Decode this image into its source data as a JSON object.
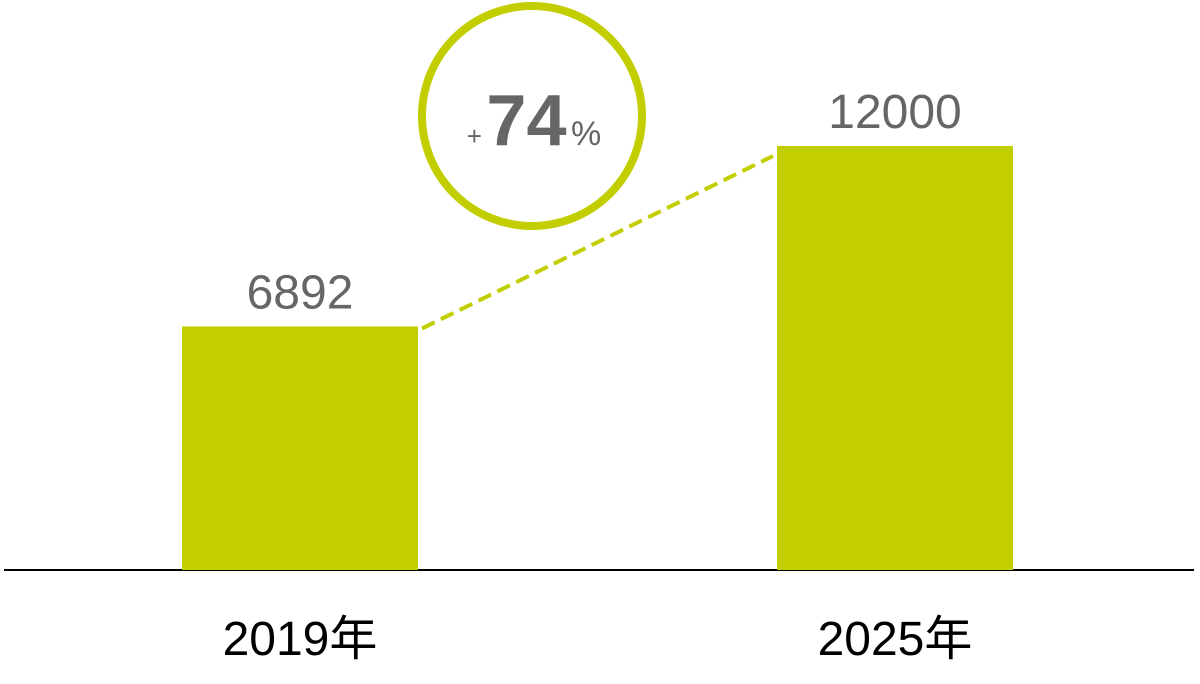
{
  "chart_data": {
    "type": "bar",
    "title": "",
    "xlabel": "",
    "ylabel": "",
    "categories": [
      "2019年",
      "2025年"
    ],
    "values": [
      6892,
      12000
    ],
    "value_labels": [
      "6892",
      "12000"
    ],
    "ylim": [
      0,
      12000
    ],
    "grid": false,
    "legend": "none",
    "annotation": {
      "prefix": "+",
      "value": "74",
      "suffix": "%"
    },
    "colors": {
      "bar": "#c3ce00",
      "connector": "#c3ce00",
      "badge_ring": "#c3ce00",
      "value_text": "#666666",
      "category_text": "#000000",
      "baseline": "#000000"
    }
  }
}
